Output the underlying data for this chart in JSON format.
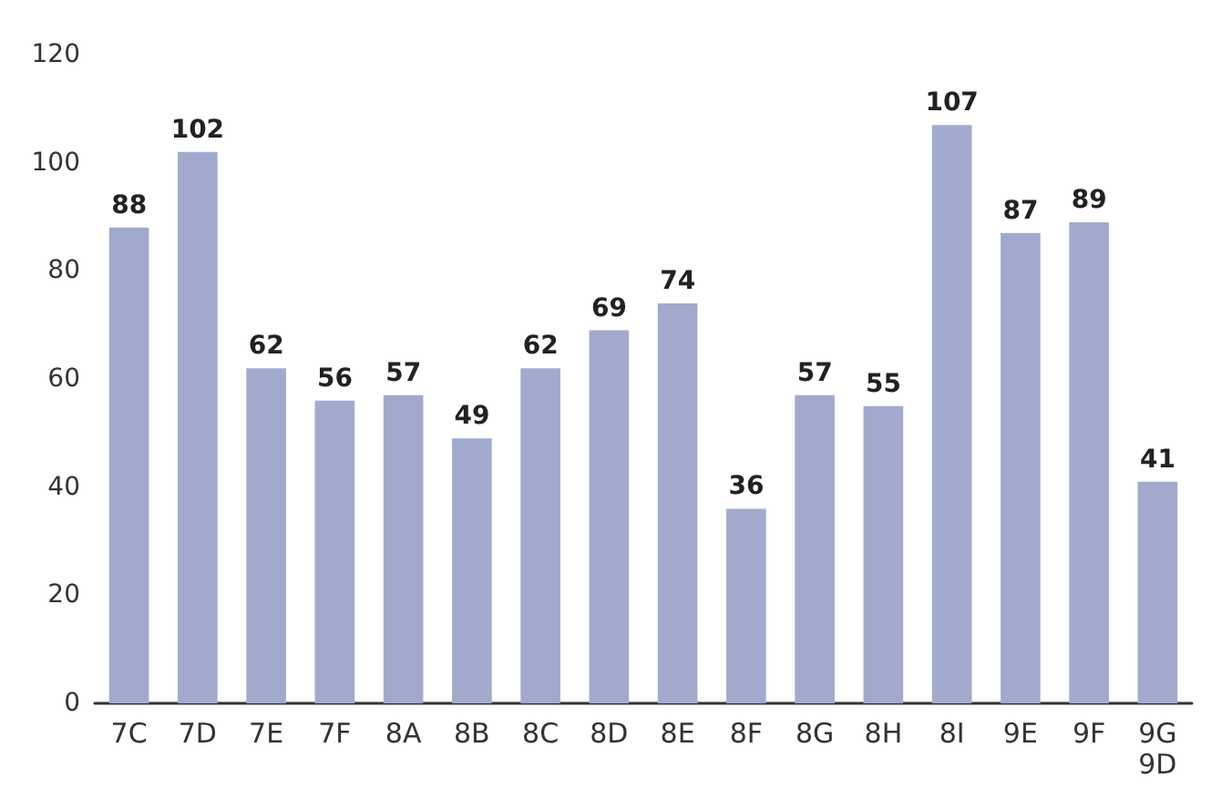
{
  "chart_data": {
    "type": "bar",
    "categories": [
      "7C",
      "7D",
      "7E",
      "7F",
      "8A",
      "8B",
      "8C",
      "8D",
      "8E",
      "8F",
      "8G",
      "8H",
      "8I",
      "9E",
      "9F",
      "9G\n9D"
    ],
    "values": [
      88,
      102,
      62,
      56,
      57,
      49,
      62,
      69,
      74,
      36,
      57,
      55,
      107,
      87,
      89,
      41
    ],
    "color": "#a1aacd",
    "ylim": [
      0,
      120
    ],
    "yticks": [
      0,
      20,
      40,
      60,
      80,
      100,
      120
    ],
    "grid": false,
    "data_labels": true
  }
}
